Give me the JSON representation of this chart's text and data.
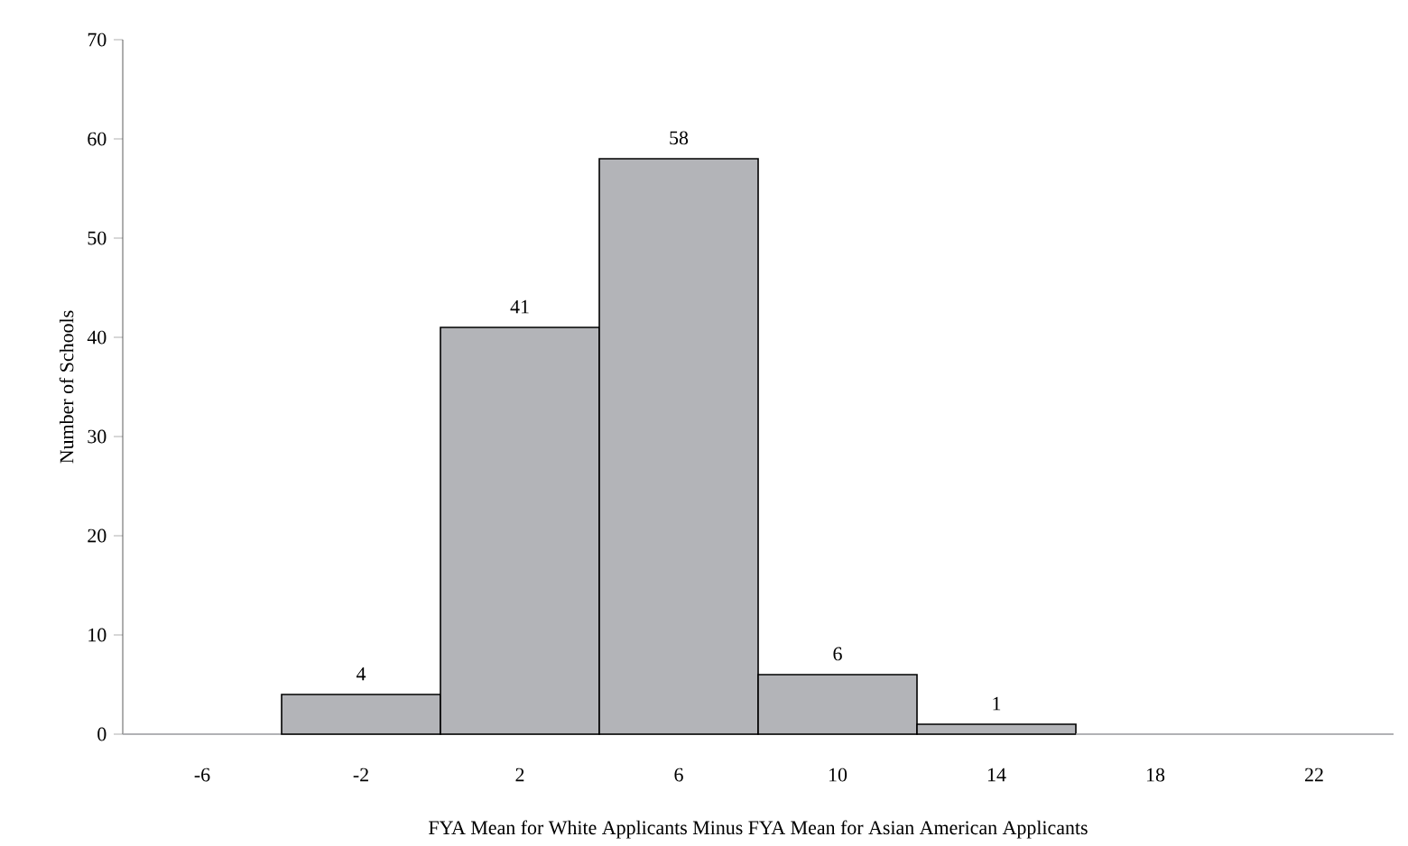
{
  "chart_data": {
    "type": "bar",
    "xlabel": "FYA Mean for White Applicants Minus FYA Mean for Asian American Applicants",
    "ylabel": "Number of Schools",
    "categories": [
      "-6",
      "-2",
      "2",
      "6",
      "10",
      "14",
      "18",
      "22"
    ],
    "values": [
      0,
      4,
      41,
      58,
      6,
      1,
      0,
      0
    ],
    "value_labels": [
      null,
      "4",
      "41",
      "58",
      "6",
      "1",
      null,
      null
    ],
    "color": "#b3b4b8",
    "ylim": [
      0,
      70
    ],
    "yticks": [
      0,
      10,
      20,
      30,
      40,
      50,
      60,
      70
    ],
    "grid": false
  }
}
